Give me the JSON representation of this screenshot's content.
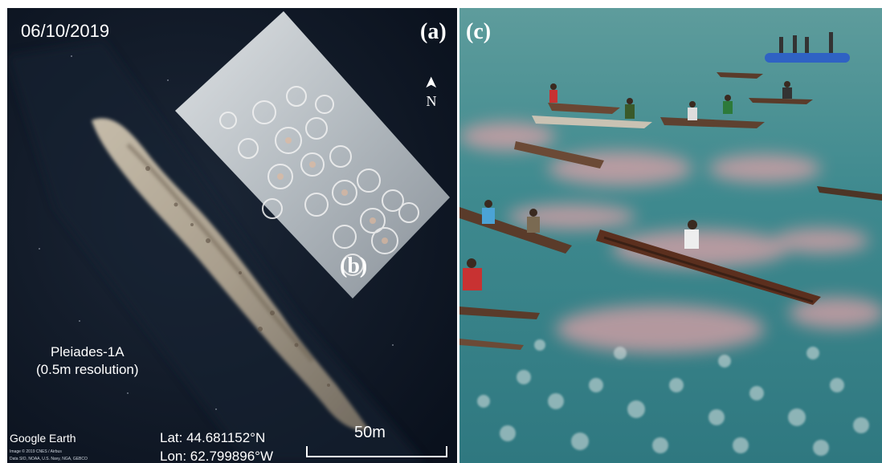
{
  "panel_a": {
    "date": "06/10/2019",
    "label": "(a)",
    "north": {
      "glyph": "➤",
      "letter": "N"
    },
    "sensor": {
      "line1": "Pleiades-1A",
      "line2": "(0.5m resolution)"
    },
    "brand": "Google Earth",
    "credits": {
      "line1": "Image © 2019 CNES / Airbus",
      "line2": "Data SIO, NOAA, U.S. Navy, NGA, GEBCO"
    },
    "coordinates": {
      "lat": "Lat: 44.681152°N",
      "lon": "Lon: 62.799896°W"
    },
    "scale": {
      "label": "50m"
    }
  },
  "panel_b": {
    "label": "(b)"
  },
  "panel_c": {
    "label": "(c)"
  },
  "colors": {
    "water_dark": "#0d1523",
    "bloom": "#c9bba6",
    "lagoon": "#3f8f94",
    "pink_jelly": "#e8a3a9"
  }
}
